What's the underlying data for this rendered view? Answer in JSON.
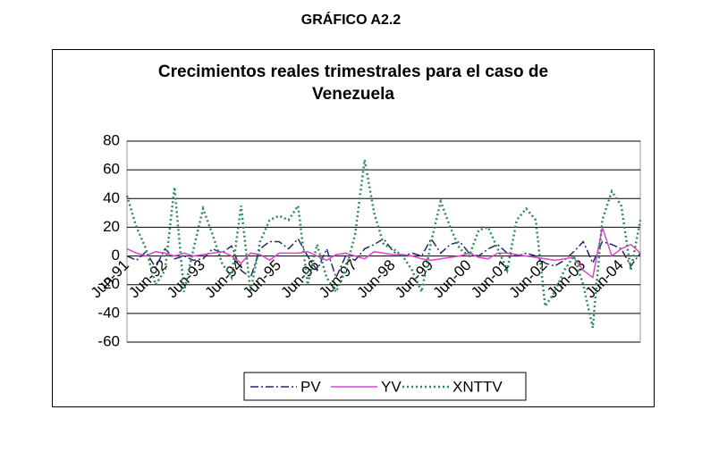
{
  "page_title": "GRÁFICO A2.2",
  "chart_data": {
    "type": "line",
    "title": "Crecimientos reales trimestrales para el caso de Venezuela",
    "categories": [
      "Jun-91",
      null,
      null,
      null,
      "Jun-92",
      null,
      null,
      null,
      "Jun-93",
      null,
      null,
      null,
      "Jun-94",
      null,
      null,
      null,
      "Jun-95",
      null,
      null,
      null,
      "Jun-96",
      null,
      null,
      null,
      "Jun-97",
      null,
      null,
      null,
      "Jun-98",
      null,
      null,
      null,
      "Jun-99",
      null,
      null,
      null,
      "Jun-00",
      null,
      null,
      null,
      "Jun-01",
      null,
      null,
      null,
      "Jun-02",
      null,
      null,
      null,
      "Jun-03",
      null,
      null,
      null,
      "Jun-04",
      null,
      null
    ],
    "series": [
      {
        "name": "PV",
        "color": "#1f2a6b",
        "values": [
          0,
          -3,
          3,
          -8,
          5,
          -2,
          0,
          -3,
          -2,
          5,
          2,
          7,
          -10,
          -15,
          5,
          10,
          10,
          5,
          12,
          0,
          -10,
          5,
          -15,
          0,
          -3,
          5,
          8,
          12,
          3,
          0,
          2,
          0,
          12,
          2,
          8,
          10,
          2,
          0,
          5,
          8,
          2,
          0,
          2,
          0,
          -5,
          -7,
          -3,
          3,
          10,
          -5,
          10,
          8,
          5,
          -7,
          2
        ]
      },
      {
        "name": "YV",
        "color": "#e040d0",
        "values": [
          5,
          2,
          0,
          3,
          2,
          0,
          2,
          0,
          1,
          2,
          3,
          0,
          -5,
          2,
          1,
          -3,
          2,
          2,
          2,
          3,
          0,
          -3,
          1,
          2,
          0,
          -2,
          3,
          2,
          1,
          1,
          0,
          -2,
          -3,
          -2,
          -1,
          0,
          2,
          -1,
          -2,
          2,
          2,
          1,
          0,
          -1,
          -2,
          -3,
          -2,
          -1,
          -10,
          -15,
          20,
          0,
          5,
          8,
          2
        ]
      },
      {
        "name": "XNTTV",
        "color": "#2e8b57",
        "values": [
          42,
          20,
          5,
          -20,
          -10,
          48,
          -25,
          5,
          33,
          15,
          -5,
          -15,
          35,
          -25,
          10,
          25,
          28,
          25,
          35,
          -20,
          8,
          -15,
          -25,
          -10,
          15,
          67,
          30,
          8,
          5,
          0,
          -10,
          -25,
          10,
          38,
          20,
          5,
          0,
          18,
          20,
          5,
          -10,
          25,
          33,
          25,
          -35,
          -25,
          -10,
          0,
          -20,
          -50,
          25,
          45,
          35,
          -10,
          25
        ]
      }
    ],
    "ylim": [
      -60,
      80
    ],
    "yticks": [
      -60,
      -40,
      -20,
      0,
      20,
      40,
      60,
      80
    ],
    "grid": true,
    "legend": "bottom"
  }
}
